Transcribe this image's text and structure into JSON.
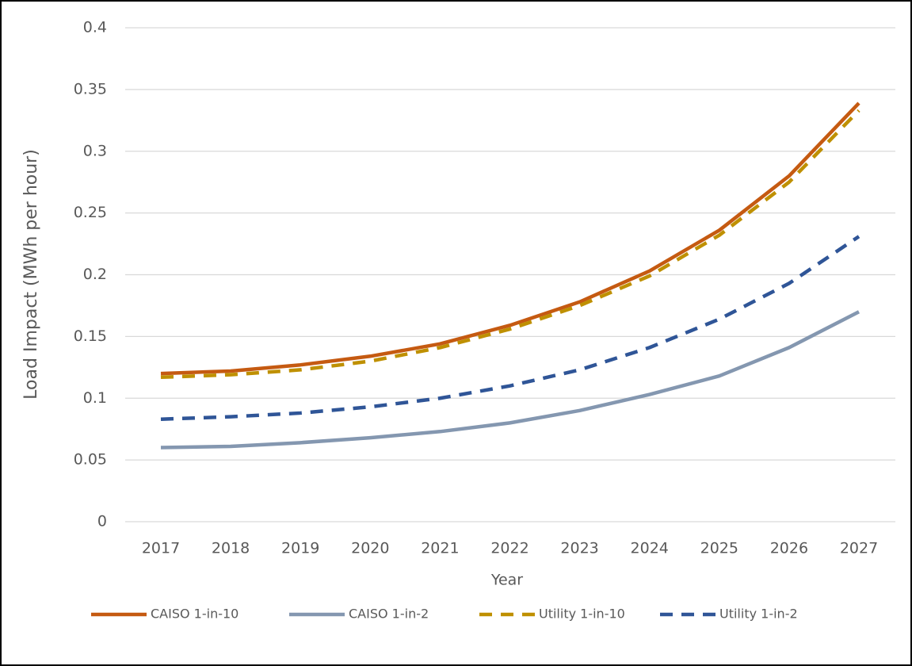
{
  "chart_data": {
    "type": "line",
    "x_label": "Year",
    "y_label": "Load Impact (MWh per hour)",
    "categories": [
      "2017",
      "2018",
      "2019",
      "2020",
      "2021",
      "2022",
      "2023",
      "2024",
      "2025",
      "2026",
      "2027"
    ],
    "series": [
      {
        "name": "CAISO 1-in-10",
        "color": "#c55a11",
        "style": "solid",
        "values": [
          0.12,
          0.122,
          0.127,
          0.134,
          0.144,
          0.159,
          0.178,
          0.203,
          0.236,
          0.28,
          0.339
        ]
      },
      {
        "name": "CAISO 1-in-2",
        "color": "#8497b0",
        "style": "solid",
        "values": [
          0.06,
          0.061,
          0.064,
          0.068,
          0.073,
          0.08,
          0.09,
          0.103,
          0.118,
          0.141,
          0.17
        ]
      },
      {
        "name": "Utility 1-in-10",
        "color": "#bf9000",
        "style": "dashed",
        "values": [
          0.117,
          0.119,
          0.123,
          0.13,
          0.141,
          0.156,
          0.175,
          0.199,
          0.232,
          0.275,
          0.333
        ]
      },
      {
        "name": "Utility 1-in-2",
        "color": "#2f5597",
        "style": "dashed",
        "values": [
          0.083,
          0.085,
          0.088,
          0.093,
          0.1,
          0.11,
          0.123,
          0.141,
          0.164,
          0.193,
          0.231
        ]
      }
    ],
    "ylim": [
      0,
      0.4
    ],
    "yticks": [
      0,
      0.05,
      0.1,
      0.15,
      0.2,
      0.25,
      0.3,
      0.35,
      0.4
    ],
    "grid": true,
    "legend": "bottom"
  }
}
